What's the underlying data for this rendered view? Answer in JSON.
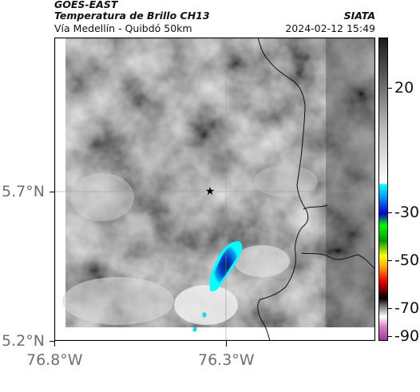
{
  "header": {
    "satellite": "GOES-EAST",
    "product": "Temperatura de Brillo CH13",
    "region": "Vía Medellín - Quibdó 50km",
    "org": "SIATA",
    "timestamp": "2024-02-12 15:49"
  },
  "map": {
    "lat_ticks": [
      "5.7°N",
      "5.2°N"
    ],
    "lon_ticks": [
      "76.8°W",
      "76.3°W"
    ],
    "marker": "star-marker"
  },
  "colorbar": {
    "ticks": [
      "20",
      "-30",
      "-50",
      "-70",
      "-90"
    ],
    "colors": {
      "warm": "#ffffff",
      "cold_gray": "#1a1a1a",
      "cyan": "#00ffff",
      "blue": "#0000cc",
      "green": "#00ff00",
      "yellow": "#ffff00",
      "red": "#ff0000",
      "black": "#000000",
      "magenta": "#cc33aa"
    }
  }
}
